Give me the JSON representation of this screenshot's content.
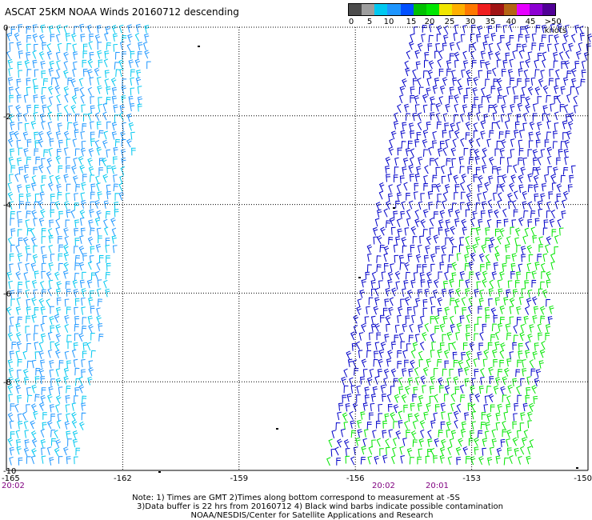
{
  "title": "ASCAT 25KM NOAA Winds 20160712 descending",
  "legend": {
    "colors": [
      "#4c4c4c",
      "#9e9e9e",
      "#00c8f0",
      "#1e96ff",
      "#0050ff",
      "#00c000",
      "#00e600",
      "#f0e600",
      "#ffb000",
      "#ff7800",
      "#f01e1e",
      "#a01414",
      "#b46414",
      "#e600ff",
      "#8c00d2",
      "#500096"
    ],
    "labels": [
      "0",
      "5",
      "10",
      "15",
      "20",
      "25",
      "30",
      "35",
      "40",
      "45",
      ">50 knots"
    ],
    "unit": "knots"
  },
  "axes": {
    "x_ticks": [
      "-165",
      "-162",
      "-159",
      "-156",
      "-153",
      "-150"
    ],
    "y_ticks": [
      "0",
      "-2",
      "-4",
      "-6",
      "-8",
      "-10"
    ],
    "lon_range": [
      -165,
      -150
    ],
    "lat_range": [
      -10,
      0
    ]
  },
  "times": [
    "20:02",
    "20:02",
    "20:01"
  ],
  "notes": {
    "line1": "Note: 1) Times are GMT 2)Times along bottom correspond to measurement at -5S",
    "line2": "3)Data buffer is 22 hrs from 20160712 4) Black wind barbs indicate possible contamination",
    "line3": "NOAA/NESDIS/Center for Satellite Applications and Research"
  },
  "swaths": [
    {
      "name": "west-swath",
      "color_main": "#1e96ff",
      "color_alt": "#00c8f0"
    },
    {
      "name": "east-swath",
      "color_main": "#0000c8",
      "color_alt": "#00e600"
    }
  ]
}
